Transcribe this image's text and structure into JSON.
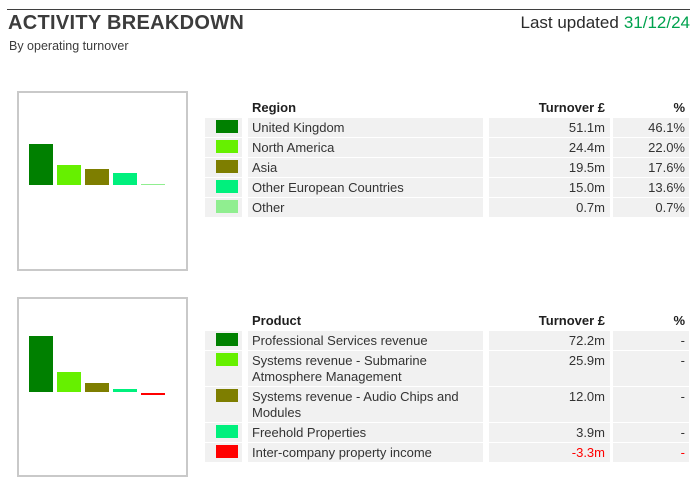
{
  "page": {
    "title": "ACTIVITY BREAKDOWN",
    "subtitle": "By operating turnover",
    "last_updated_label": "Last updated",
    "last_updated_date": "31/12/24"
  },
  "colors": {
    "date_green": "#00A24E",
    "negative_red": "#FF0000",
    "row_background": "#F1F1F1",
    "chart_border": "#C9C9C9",
    "palette": [
      "#008000",
      "#66F000",
      "#7E7E00",
      "#00F07D",
      "#90EE90",
      "#FF0000"
    ]
  },
  "sections": [
    {
      "table": {
        "headers": {
          "name": "Region",
          "turnover": "Turnover £",
          "percent": "%"
        },
        "rows": [
          {
            "label": "United Kingdom",
            "turnover": "51.1m",
            "percent": "46.1%",
            "color": "#008000"
          },
          {
            "label": "North America",
            "turnover": "24.4m",
            "percent": "22.0%",
            "color": "#66F000"
          },
          {
            "label": "Asia",
            "turnover": "19.5m",
            "percent": "17.6%",
            "color": "#7E7E00"
          },
          {
            "label": "Other European Countries",
            "turnover": "15.0m",
            "percent": "13.6%",
            "color": "#00F07D"
          },
          {
            "label": "Other",
            "turnover": "0.7m",
            "percent": "0.7%",
            "color": "#90EE90"
          }
        ]
      }
    },
    {
      "table": {
        "headers": {
          "name": "Product",
          "turnover": "Turnover £",
          "percent": "%"
        },
        "rows": [
          {
            "label": "Professional Services revenue",
            "turnover": "72.2m",
            "percent": "-",
            "color": "#008000"
          },
          {
            "label": "Systems revenue - Submarine Atmosphere Management",
            "turnover": "25.9m",
            "percent": "-",
            "color": "#66F000"
          },
          {
            "label": "Systems revenue - Audio Chips and Modules",
            "turnover": "12.0m",
            "percent": "-",
            "color": "#7E7E00"
          },
          {
            "label": "Freehold Properties",
            "turnover": "3.9m",
            "percent": "-",
            "color": "#00F07D"
          },
          {
            "label": "Inter-company property income",
            "turnover": "-3.3m",
            "percent": "-",
            "color": "#FF0000"
          }
        ]
      }
    }
  ],
  "chart_data": [
    {
      "type": "bar",
      "categories": [
        "United Kingdom",
        "North America",
        "Asia",
        "Other European Countries",
        "Other"
      ],
      "values": [
        51.1,
        24.4,
        19.5,
        15.0,
        0.7
      ],
      "colors": [
        "#008000",
        "#66F000",
        "#7E7E00",
        "#00F07D",
        "#90EE90"
      ],
      "legend_position": "right-table",
      "grid": false
    },
    {
      "type": "bar",
      "categories": [
        "Professional Services revenue",
        "Systems revenue - Submarine Atmosphere Management",
        "Systems revenue - Audio Chips and Modules",
        "Freehold Properties",
        "Inter-company property income"
      ],
      "values": [
        72.2,
        25.9,
        12.0,
        3.9,
        -3.3
      ],
      "colors": [
        "#008000",
        "#66F000",
        "#7E7E00",
        "#00F07D",
        "#FF0000"
      ],
      "legend_position": "right-table",
      "grid": false
    }
  ]
}
